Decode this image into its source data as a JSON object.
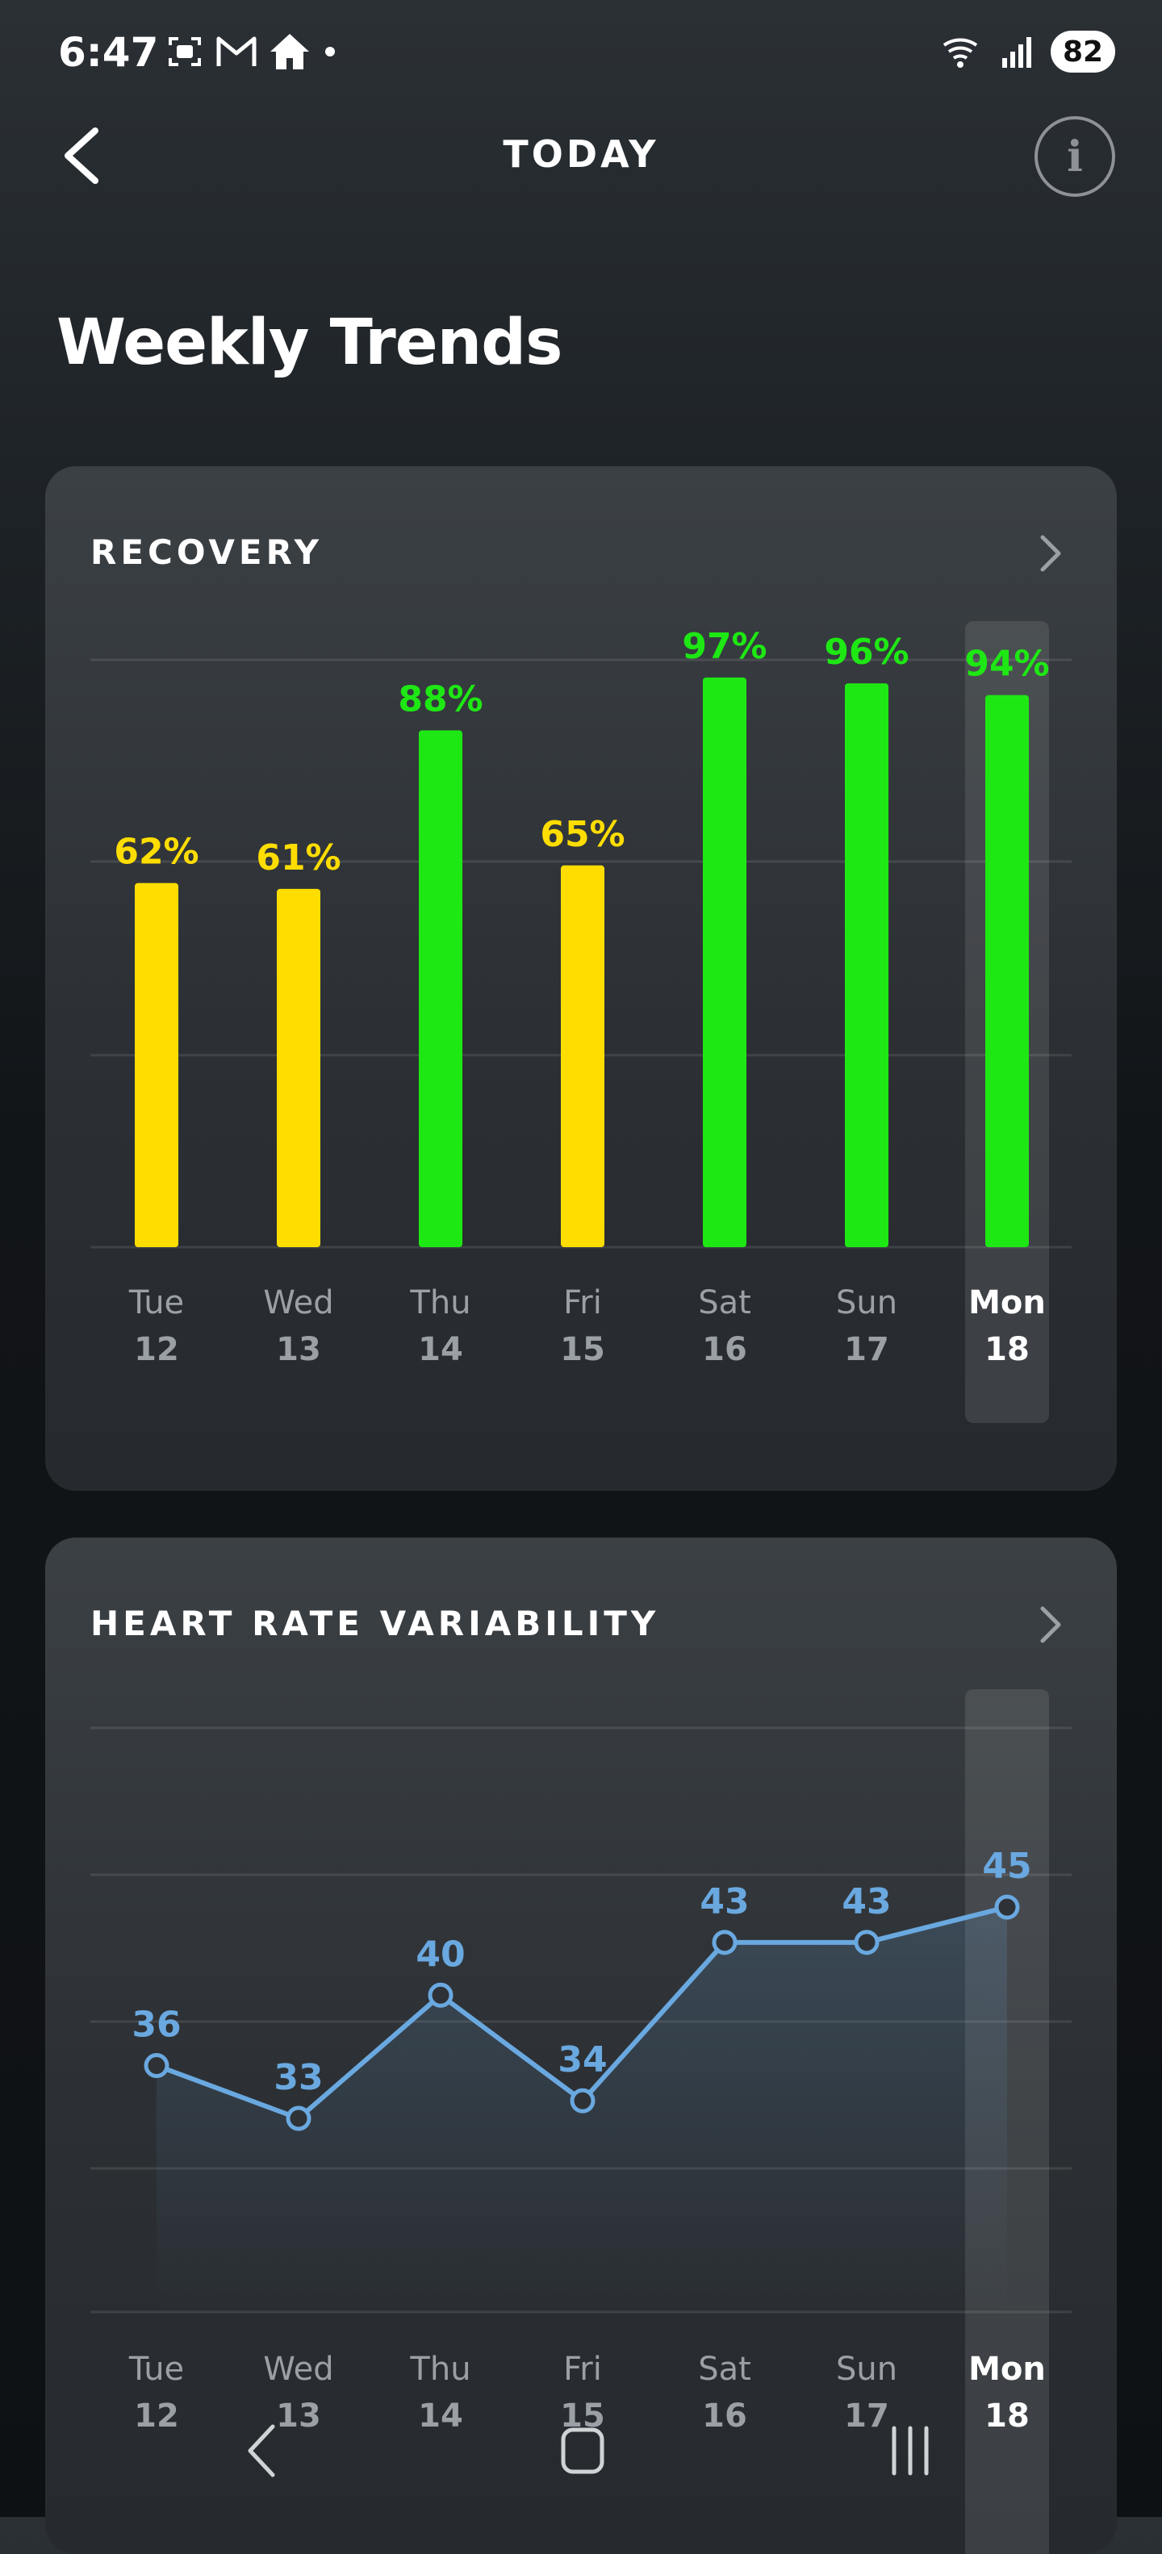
{
  "status_bar": {
    "time": "6:47",
    "battery": "82",
    "icons_left": [
      "screenshot-icon",
      "gmail-icon",
      "home-icon",
      "dot-icon"
    ],
    "icons_right": [
      "wifi-icon",
      "signal-icon"
    ]
  },
  "header": {
    "title": "TODAY",
    "back_icon": "chevron-left-icon",
    "info_icon": "info-icon",
    "info_glyph": "i"
  },
  "page": {
    "title": "Weekly Trends"
  },
  "recovery": {
    "title": "RECOVERY",
    "chevron_icon": "chevron-right-icon"
  },
  "hrv": {
    "title": "HEART RATE VARIABILITY",
    "chevron_icon": "chevron-right-icon"
  },
  "colors": {
    "green": "#1ee814",
    "yellow": "#ffdd00",
    "blue": "#6aa8e0",
    "day_label": "#9aa0a6",
    "highlight_label": "#ffffff"
  },
  "chart_data": [
    {
      "type": "bar",
      "categories": [
        "Tue 12",
        "Wed 13",
        "Thu 14",
        "Fri 15",
        "Sat 16",
        "Sun 17",
        "Mon 18"
      ],
      "day_names": [
        "Tue",
        "Wed",
        "Thu",
        "Fri",
        "Sat",
        "Sun",
        "Mon"
      ],
      "day_numbers": [
        "12",
        "13",
        "14",
        "15",
        "16",
        "17",
        "18"
      ],
      "values": [
        62,
        61,
        88,
        65,
        97,
        96,
        94
      ],
      "value_labels": [
        "62%",
        "61%",
        "88%",
        "65%",
        "97%",
        "96%",
        "94%"
      ],
      "bar_colors": [
        "#ffdd00",
        "#ffdd00",
        "#1ee814",
        "#ffdd00",
        "#1ee814",
        "#1ee814",
        "#1ee814"
      ],
      "ylim": [
        0,
        100
      ],
      "grid": true,
      "highlighted_index": 6
    },
    {
      "type": "line",
      "categories": [
        "Tue 12",
        "Wed 13",
        "Thu 14",
        "Fri 15",
        "Sat 16",
        "Sun 17",
        "Mon 18"
      ],
      "day_names": [
        "Tue",
        "Wed",
        "Thu",
        "Fri",
        "Sat",
        "Sun",
        "Mon"
      ],
      "day_numbers": [
        "12",
        "13",
        "14",
        "15",
        "16",
        "17",
        "18"
      ],
      "values": [
        36,
        33,
        40,
        34,
        43,
        43,
        45
      ],
      "value_labels": [
        "36",
        "33",
        "40",
        "34",
        "43",
        "43",
        "45"
      ],
      "ylim": [
        22,
        55
      ],
      "grid": true,
      "highlighted_index": 6
    }
  ],
  "nav_bar": {
    "back_icon": "nav-back-icon",
    "home_icon": "nav-home-icon",
    "recents_icon": "nav-recents-icon"
  }
}
